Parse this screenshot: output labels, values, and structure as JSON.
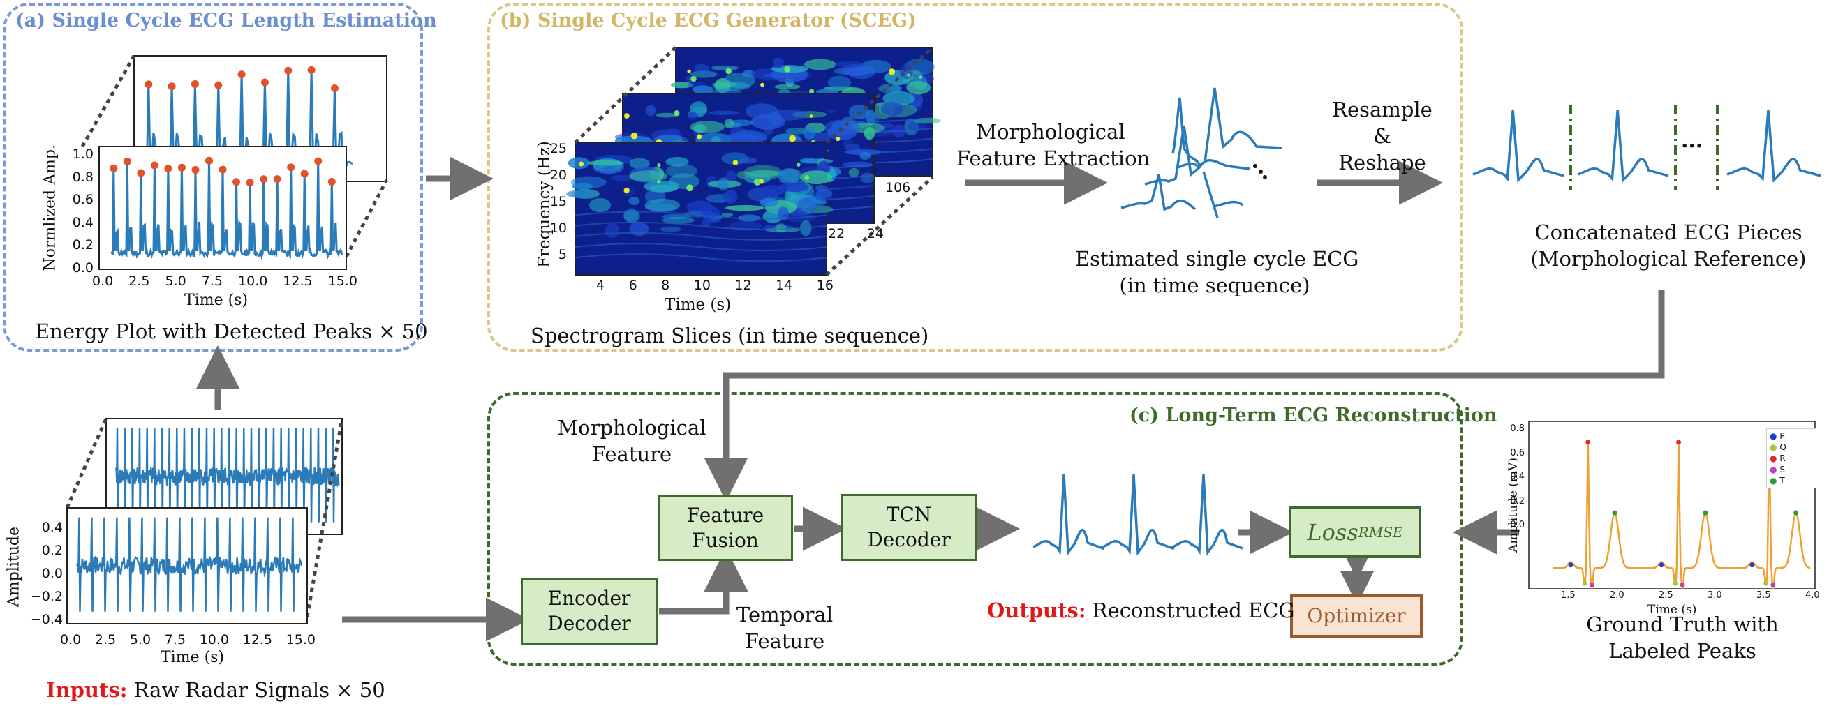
{
  "panels": {
    "a": {
      "title": "(a) Single Cycle ECG Length Estimation",
      "color": "#6a8ed0"
    },
    "b": {
      "title": "(b) Single Cycle ECG Generator (SCEG)",
      "color": "#d9c07a"
    },
    "c": {
      "title": "(c) Long-Term ECG Reconstruction",
      "color": "#3f6a2b"
    }
  },
  "energy_plot": {
    "ylabel": "Normlized Amp.",
    "xlabel": "Time (s)",
    "yticks": [
      "0.0",
      "0.2",
      "0.4",
      "0.6",
      "0.8",
      "1.0"
    ],
    "xticks": [
      "0.0",
      "2.5",
      "5.0",
      "7.5",
      "10.0",
      "12.5",
      "15.0"
    ],
    "caption": "Energy Plot with Detected Peaks × 50"
  },
  "radar_plot": {
    "ylabel": "Amplitude",
    "xlabel": "Time (s)",
    "yticks": [
      "0.4",
      "0.2",
      "0.0",
      "−0.2",
      "−0.4"
    ],
    "xticks": [
      "0.0",
      "2.5",
      "5.0",
      "7.5",
      "10.0",
      "12.5",
      "15.0"
    ],
    "inputs_prefix": "Inputs:",
    "inputs_text": "Raw Radar Signals × 50"
  },
  "spectrogram": {
    "ylabel": "Frequency (Hz)",
    "xlabel": "Time (s)",
    "yticks": [
      "25",
      "20",
      "15",
      "10",
      "5"
    ],
    "xticks": [
      "4",
      "6",
      "8",
      "10",
      "12",
      "14",
      "16"
    ],
    "back_ticks_mid": [
      "22",
      "24"
    ],
    "back_ticks_top": [
      "106"
    ],
    "caption": "Spectrogram Slices (in time sequence)"
  },
  "labels": {
    "morph_extraction": [
      "Morphological",
      "Feature Extraction"
    ],
    "estimated_single": [
      "Estimated single cycle ECG",
      "(in time sequence)"
    ],
    "resample": [
      "Resample",
      "&",
      "Reshape"
    ],
    "ellipsis": "...",
    "concatenated": [
      "Concatenated ECG Pieces",
      "(Morphological Reference)"
    ],
    "morph_feature": [
      "Morphological",
      "Feature"
    ],
    "temporal_feature": [
      "Temporal",
      "Feature"
    ],
    "outputs_prefix": "Outputs:",
    "outputs_text": "Reconstructed ECG",
    "ground_truth": [
      "Ground Truth with",
      "Labeled Peaks"
    ]
  },
  "boxes": {
    "encoder": [
      "Encoder",
      "Decoder"
    ],
    "fusion": [
      "Feature",
      "Fusion"
    ],
    "tcn": [
      "TCN",
      "Decoder"
    ],
    "loss_main": "Loss",
    "loss_sub": "RMSE",
    "optimizer": "Optimizer"
  },
  "ground_truth_plot": {
    "ylabel": "Amplitude (mV)",
    "xlabel": "Time (s)",
    "yticks": [
      "0.8",
      "0.6",
      "0.4",
      "0.2",
      "0.0"
    ],
    "xticks": [
      "1.5",
      "2.0",
      "2.5",
      "3.0",
      "3.5",
      "4.0"
    ],
    "legend": [
      {
        "label": "P",
        "color": "#1f3fd6"
      },
      {
        "label": "Q",
        "color": "#a8c83a"
      },
      {
        "label": "R",
        "color": "#e02828"
      },
      {
        "label": "S",
        "color": "#c43cc4"
      },
      {
        "label": "T",
        "color": "#2a9a3a"
      }
    ]
  },
  "colors": {
    "signal": "#2b7bb9",
    "peak": "#e0532a",
    "arrow": "#707070",
    "red": "#e01818",
    "gt_line": "#f0a030"
  }
}
